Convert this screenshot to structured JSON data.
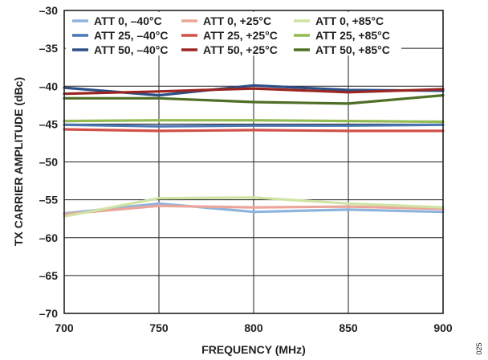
{
  "chart_data": {
    "type": "line",
    "title": "",
    "xlabel": "FREQUENCY (MHz)",
    "ylabel": "TX CARRIER AMPLITUDE (dBc)",
    "x": [
      700,
      750,
      800,
      850,
      900
    ],
    "xlim": [
      700,
      900
    ],
    "ylim": [
      -70,
      -30
    ],
    "xticks": [
      700,
      750,
      800,
      850,
      900
    ],
    "yticks": [
      -30,
      -35,
      -40,
      -45,
      -50,
      -55,
      -60,
      -65,
      -70
    ],
    "ytick_labels": [
      "–30",
      "–35",
      "–40",
      "–45",
      "–50",
      "–55",
      "–60",
      "–65",
      "–70"
    ],
    "grid": true,
    "legend_position": "top",
    "figure_id": "025",
    "series": [
      {
        "name": "ATT 0, –40°C",
        "color": "#8fb4dc",
        "values": [
          -56.8,
          -55.5,
          -56.6,
          -56.3,
          -56.6
        ]
      },
      {
        "name": "ATT 25, –40°C",
        "color": "#4a78b4",
        "values": [
          -45.1,
          -45.3,
          -45.2,
          -45.2,
          -45.1
        ]
      },
      {
        "name": "ATT 50, –40°C",
        "color": "#2b4f86",
        "values": [
          -40.2,
          -41.2,
          -39.9,
          -40.5,
          -40.6
        ]
      },
      {
        "name": "ATT 0, +25°C",
        "color": "#eba59a",
        "values": [
          -56.9,
          -55.8,
          -56.0,
          -55.9,
          -56.2
        ]
      },
      {
        "name": "ATT 25, +25°C",
        "color": "#d2504a",
        "values": [
          -45.7,
          -45.9,
          -45.8,
          -45.9,
          -45.9
        ]
      },
      {
        "name": "ATT 50, +25°C",
        "color": "#9b2520",
        "values": [
          -41.0,
          -40.7,
          -40.3,
          -40.8,
          -40.4
        ]
      },
      {
        "name": "ATT 0, +85°C",
        "color": "#cfe3a4",
        "values": [
          -57.2,
          -54.8,
          -54.7,
          -55.5,
          -56.0
        ]
      },
      {
        "name": "ATT 25, +85°C",
        "color": "#92bc52",
        "values": [
          -44.6,
          -44.5,
          -44.5,
          -44.6,
          -44.7
        ]
      },
      {
        "name": "ATT 50, +85°C",
        "color": "#4f6e26",
        "values": [
          -41.6,
          -41.6,
          -42.1,
          -42.3,
          -41.2
        ]
      }
    ]
  }
}
